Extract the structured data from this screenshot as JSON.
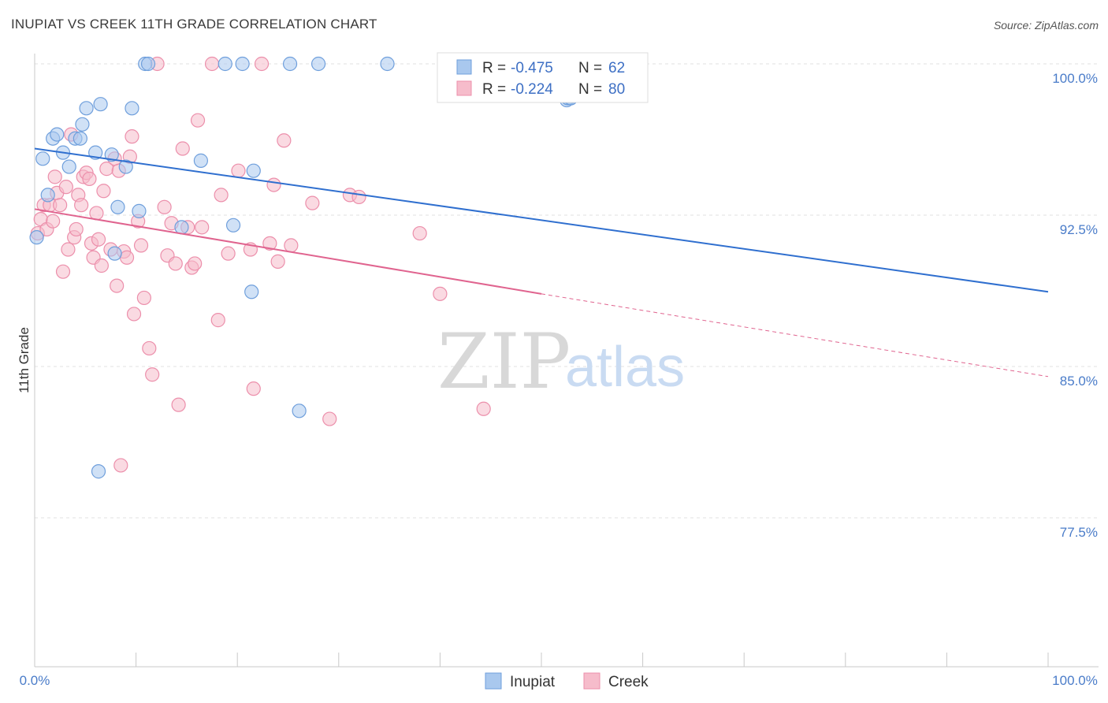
{
  "header": {
    "title": "INUPIAT VS CREEK 11TH GRADE CORRELATION CHART",
    "source": "Source: ZipAtlas.com"
  },
  "colors": {
    "inupiat_fill": "#a9c8ee",
    "inupiat_stroke": "#6f9fdc",
    "inupiat_line": "#2f6fcf",
    "creek_fill": "#f6bccb",
    "creek_stroke": "#ec8fab",
    "creek_line": "#e0648f",
    "tick_text": "#4a7cc9",
    "grid": "#e2e2e2"
  },
  "legend": {
    "rows": [
      {
        "r_label": "R = ",
        "r_value": "-0.475",
        "n_label": "N = ",
        "n_value": "62"
      },
      {
        "r_label": "R = ",
        "r_value": "-0.224",
        "n_label": "N = ",
        "n_value": "80"
      }
    ]
  },
  "bottom_legend": [
    "Inupiat",
    "Creek"
  ],
  "watermark": {
    "zip": "ZIP",
    "atlas": "atlas"
  },
  "chart_data": {
    "type": "scatter",
    "title": "INUPIAT VS CREEK 11TH GRADE CORRELATION CHART",
    "ylabel": "11th Grade",
    "xlabel": "",
    "xlim": [
      0,
      100
    ],
    "ylim": [
      70.5,
      101.5
    ],
    "x_tick_labels": [
      "0.0%",
      "100.0%"
    ],
    "y_ticks": [
      77.5,
      85.0,
      92.5,
      100.0
    ],
    "y_tick_labels": [
      "77.5%",
      "85.0%",
      "92.5%",
      "100.0%"
    ],
    "grid": true,
    "legend_position": "top-center",
    "series": [
      {
        "name": "Inupiat",
        "R": -0.475,
        "N": 62,
        "trend": {
          "x0": 0,
          "y0": 95.8,
          "x1": 100,
          "y1": 88.7
        },
        "points": [
          [
            0.2,
            91.4
          ],
          [
            0.8,
            95.3
          ],
          [
            1.3,
            93.5
          ],
          [
            1.8,
            96.3
          ],
          [
            2.2,
            96.5
          ],
          [
            2.8,
            95.6
          ],
          [
            3.4,
            94.9
          ],
          [
            4.0,
            96.3
          ],
          [
            4.5,
            96.3
          ],
          [
            4.7,
            97.0
          ],
          [
            5.1,
            97.8
          ],
          [
            6.0,
            95.6
          ],
          [
            6.3,
            79.8
          ],
          [
            6.5,
            98.0
          ],
          [
            7.6,
            95.5
          ],
          [
            7.9,
            90.6
          ],
          [
            8.2,
            92.9
          ],
          [
            9.0,
            94.9
          ],
          [
            9.6,
            97.8
          ],
          [
            10.3,
            92.7
          ],
          [
            10.9,
            100.0
          ],
          [
            11.2,
            100.0
          ],
          [
            14.5,
            91.9
          ],
          [
            16.4,
            95.2
          ],
          [
            18.8,
            100.0
          ],
          [
            19.6,
            92.0
          ],
          [
            20.5,
            100.0
          ],
          [
            21.6,
            94.7
          ],
          [
            21.4,
            88.7
          ],
          [
            25.2,
            100.0
          ],
          [
            26.1,
            82.8
          ],
          [
            28.0,
            100.0
          ],
          [
            34.8,
            100.0
          ],
          [
            47.3,
            100.0
          ],
          [
            52.4,
            100.0
          ],
          [
            52.6,
            100.0
          ],
          [
            52.8,
            100.0
          ],
          [
            52.9,
            100.0
          ],
          [
            52.8,
            99.0
          ],
          [
            52.5,
            99.0
          ],
          [
            52.6,
            98.6
          ],
          [
            52.9,
            99.1
          ],
          [
            53.2,
            98.9
          ],
          [
            52.8,
            98.7
          ],
          [
            52.5,
            98.8
          ],
          [
            52.9,
            98.5
          ],
          [
            52.3,
            98.5
          ],
          [
            52.5,
            98.4
          ],
          [
            52.9,
            98.3
          ],
          [
            52.7,
            98.3
          ],
          [
            52.4,
            98.6
          ],
          [
            53.1,
            98.4
          ],
          [
            52.5,
            98.4
          ],
          [
            53.0,
            98.6
          ],
          [
            52.5,
            98.5
          ],
          [
            52.7,
            98.8
          ],
          [
            52.4,
            98.4
          ],
          [
            52.5,
            98.2
          ],
          [
            52.6,
            98.3
          ],
          [
            52.9,
            98.3
          ],
          [
            52.9,
            98.5
          ],
          [
            52.4,
            98.6
          ]
        ]
      },
      {
        "name": "Creek",
        "R": -0.224,
        "N": 80,
        "trend": {
          "x0": 0,
          "y0": 92.8,
          "x1": 50,
          "y1": 88.6,
          "dash_x1": 100,
          "dash_y1": 84.5
        },
        "points": [
          [
            0.3,
            91.6
          ],
          [
            0.6,
            92.3
          ],
          [
            0.9,
            93.0
          ],
          [
            1.2,
            91.8
          ],
          [
            1.5,
            93.0
          ],
          [
            1.8,
            92.2
          ],
          [
            2.0,
            94.4
          ],
          [
            2.2,
            93.6
          ],
          [
            2.5,
            93.0
          ],
          [
            2.8,
            89.7
          ],
          [
            3.1,
            93.9
          ],
          [
            3.3,
            90.8
          ],
          [
            3.6,
            96.5
          ],
          [
            3.9,
            91.4
          ],
          [
            4.1,
            91.8
          ],
          [
            4.3,
            93.5
          ],
          [
            4.6,
            93.0
          ],
          [
            4.8,
            94.4
          ],
          [
            5.1,
            94.6
          ],
          [
            5.4,
            94.3
          ],
          [
            5.6,
            91.1
          ],
          [
            5.8,
            90.4
          ],
          [
            6.1,
            92.6
          ],
          [
            6.3,
            91.3
          ],
          [
            6.6,
            90.0
          ],
          [
            6.8,
            93.7
          ],
          [
            7.1,
            94.8
          ],
          [
            7.5,
            90.8
          ],
          [
            7.9,
            95.3
          ],
          [
            8.1,
            89.0
          ],
          [
            8.3,
            94.7
          ],
          [
            8.5,
            80.1
          ],
          [
            8.8,
            90.7
          ],
          [
            9.1,
            90.4
          ],
          [
            9.4,
            95.4
          ],
          [
            9.6,
            96.4
          ],
          [
            9.8,
            87.6
          ],
          [
            10.2,
            92.2
          ],
          [
            10.5,
            91.0
          ],
          [
            10.8,
            88.4
          ],
          [
            11.3,
            85.9
          ],
          [
            11.6,
            84.6
          ],
          [
            12.1,
            100.0
          ],
          [
            12.8,
            92.9
          ],
          [
            13.1,
            90.5
          ],
          [
            13.5,
            92.1
          ],
          [
            13.9,
            90.1
          ],
          [
            14.2,
            83.1
          ],
          [
            14.6,
            95.8
          ],
          [
            15.1,
            91.9
          ],
          [
            15.5,
            89.9
          ],
          [
            15.8,
            90.1
          ],
          [
            16.1,
            97.2
          ],
          [
            16.5,
            91.9
          ],
          [
            17.5,
            100.0
          ],
          [
            18.1,
            87.3
          ],
          [
            18.4,
            93.5
          ],
          [
            19.1,
            90.6
          ],
          [
            20.1,
            94.7
          ],
          [
            21.3,
            90.8
          ],
          [
            21.6,
            83.9
          ],
          [
            22.4,
            100.0
          ],
          [
            23.2,
            91.1
          ],
          [
            23.6,
            94.0
          ],
          [
            24.0,
            90.2
          ],
          [
            24.6,
            96.2
          ],
          [
            25.3,
            91.0
          ],
          [
            27.4,
            93.1
          ],
          [
            29.1,
            82.4
          ],
          [
            31.1,
            93.5
          ],
          [
            32.0,
            93.4
          ],
          [
            38.0,
            91.6
          ],
          [
            40.0,
            88.6
          ],
          [
            44.3,
            82.9
          ],
          [
            47.2,
            100.0
          ],
          [
            47.5,
            100.0
          ],
          [
            47.7,
            100.0
          ],
          [
            47.4,
            100.0
          ],
          [
            47.6,
            100.0
          ],
          [
            47.3,
            100.0
          ]
        ]
      }
    ]
  }
}
